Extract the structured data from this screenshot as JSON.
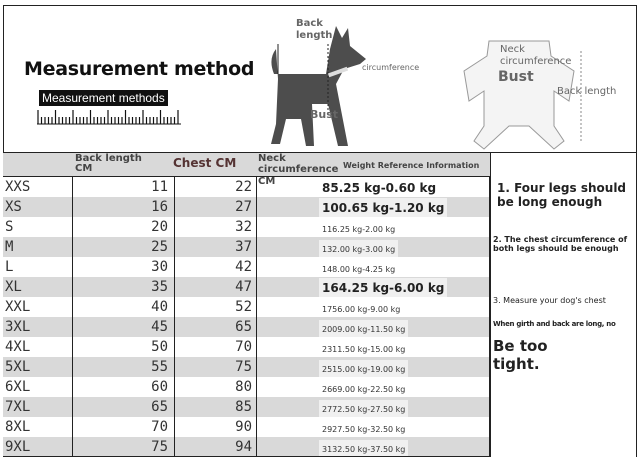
{
  "header": {
    "title": "Measurement method",
    "badge": "Measurement methods",
    "dog_labels": {
      "back": "Back",
      "length": "length",
      "neck": "circumference",
      "bust": "Bust"
    },
    "clothes_labels": {
      "neck": "Neck",
      "circ": "circumference",
      "bust": "Bust",
      "back_length": "Back length"
    }
  },
  "table": {
    "headers": {
      "back": "Back length",
      "back_unit": "CM",
      "chest": "Chest CM",
      "neck": "Neck",
      "neck2": "circumference",
      "neck_unit": "CM",
      "weight": "Weight Reference Information"
    },
    "rows": [
      {
        "size": "XXS",
        "back": "11",
        "chest": "22",
        "weight": "85.25 kg-0.60 kg"
      },
      {
        "size": "XS",
        "back": "16",
        "chest": "27",
        "weight": "100.65 kg-1.20 kg"
      },
      {
        "size": "S",
        "back": "20",
        "chest": "32",
        "weight": "116.25 kg-2.00 kg"
      },
      {
        "size": "M",
        "back": "25",
        "chest": "37",
        "weight": "132.00 kg-3.00 kg"
      },
      {
        "size": "L",
        "back": "30",
        "chest": "42",
        "weight": "148.00 kg-4.25 kg"
      },
      {
        "size": "XL",
        "back": "35",
        "chest": "47",
        "weight": "164.25 kg-6.00 kg"
      },
      {
        "size": "XXL",
        "back": "40",
        "chest": "52",
        "weight": "1756.00 kg-9.00 kg"
      },
      {
        "size": "3XL",
        "back": "45",
        "chest": "65",
        "weight": "2009.00 kg-11.50 kg"
      },
      {
        "size": "4XL",
        "back": "50",
        "chest": "70",
        "weight": "2311.50 kg-15.00 kg"
      },
      {
        "size": "5XL",
        "back": "55",
        "chest": "75",
        "weight": "2515.00 kg-19.00 kg"
      },
      {
        "size": "6XL",
        "back": "60",
        "chest": "80",
        "weight": "2669.00 kg-22.50 kg"
      },
      {
        "size": "7XL",
        "back": "65",
        "chest": "85",
        "weight": "2772.50 kg-27.50 kg"
      },
      {
        "size": "8XL",
        "back": "70",
        "chest": "90",
        "weight": "2927.50 kg-32.50 kg"
      },
      {
        "size": "9XL",
        "back": "75",
        "chest": "94",
        "weight": "3132.50 kg-37.50 kg"
      }
    ]
  },
  "notes": {
    "n1": "1. Four legs should be long enough",
    "n2": "2. The chest circumference of both legs should be enough",
    "n3": "3. Measure your dog's chest",
    "n4": "When girth and back are long, no",
    "n5": "Be too tight."
  }
}
